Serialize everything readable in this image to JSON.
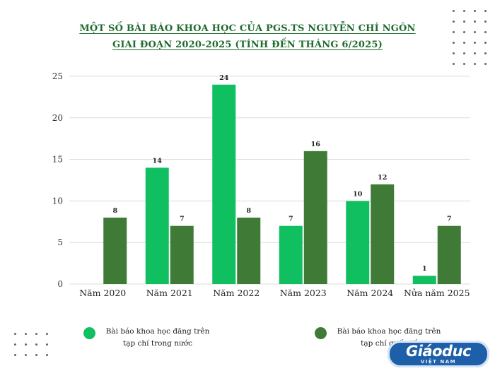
{
  "chart_data": {
    "type": "bar",
    "title_lines": [
      "MỘT SỐ BÀI BÁO KHOA HỌC CỦA PGS.TS NGUYỄN CHÍ NGÔN",
      "GIAI ĐOẠN 2020-2025 (TÍNH ĐẾN THÁNG 6/2025)"
    ],
    "categories": [
      "Năm 2020",
      "Năm 2021",
      "Năm 2022",
      "Năm 2023",
      "Năm 2024",
      "Nửa năm 2025"
    ],
    "series": [
      {
        "name": "Bài báo khoa học đăng trên tạp chí trong nước",
        "color": "#10c060",
        "values": [
          0,
          14,
          24,
          7,
          10,
          1
        ]
      },
      {
        "name": "Bài báo khoa học đăng trên tạp chí quốc tế",
        "color": "#3f7a36",
        "values": [
          8,
          7,
          8,
          16,
          12,
          7
        ]
      }
    ],
    "ylim": [
      0,
      25
    ],
    "yticks": [
      0,
      5,
      10,
      15,
      20,
      25
    ],
    "grid": true,
    "legend_position": "bottom",
    "legend": [
      {
        "line1": "Bài báo khoa học đăng trên",
        "line2": "tạp chí trong nước",
        "color": "#10c060"
      },
      {
        "line1": "Bài báo khoa học đăng trên",
        "line2": "tạp chí quốc tế",
        "color": "#3f7a36"
      }
    ]
  },
  "logo": {
    "main": "Giáoduc",
    "sub": "VIỆT NAM",
    "color": "#1d5fa8",
    "icon": "giaoduc-vietnam-logo"
  }
}
